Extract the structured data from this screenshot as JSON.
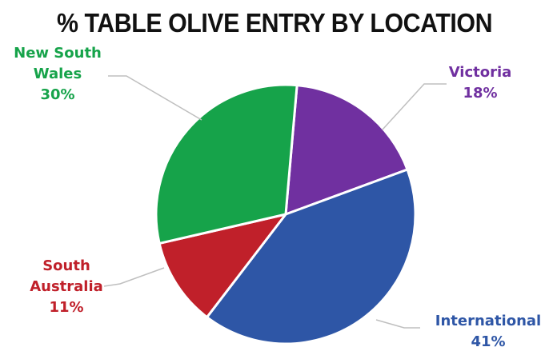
{
  "chart_data": {
    "type": "pie",
    "title": "% TABLE OLIVE ENTRY BY LOCATION",
    "slices": [
      {
        "label": "Victoria",
        "label_lines": [
          "Victoria"
        ],
        "value": 18,
        "value_text": "18%",
        "color": "#7030a0"
      },
      {
        "label": "International",
        "label_lines": [
          "International"
        ],
        "value": 41,
        "value_text": "41%",
        "color": "#2e56a6"
      },
      {
        "label": "South Australia",
        "label_lines": [
          "South",
          "Australia"
        ],
        "value": 11,
        "value_text": "11%",
        "color": "#c0202a"
      },
      {
        "label": "New South Wales",
        "label_lines": [
          "New South",
          "Wales"
        ],
        "value": 30,
        "value_text": "30%",
        "color": "#16a34a"
      }
    ],
    "legend": "none"
  }
}
